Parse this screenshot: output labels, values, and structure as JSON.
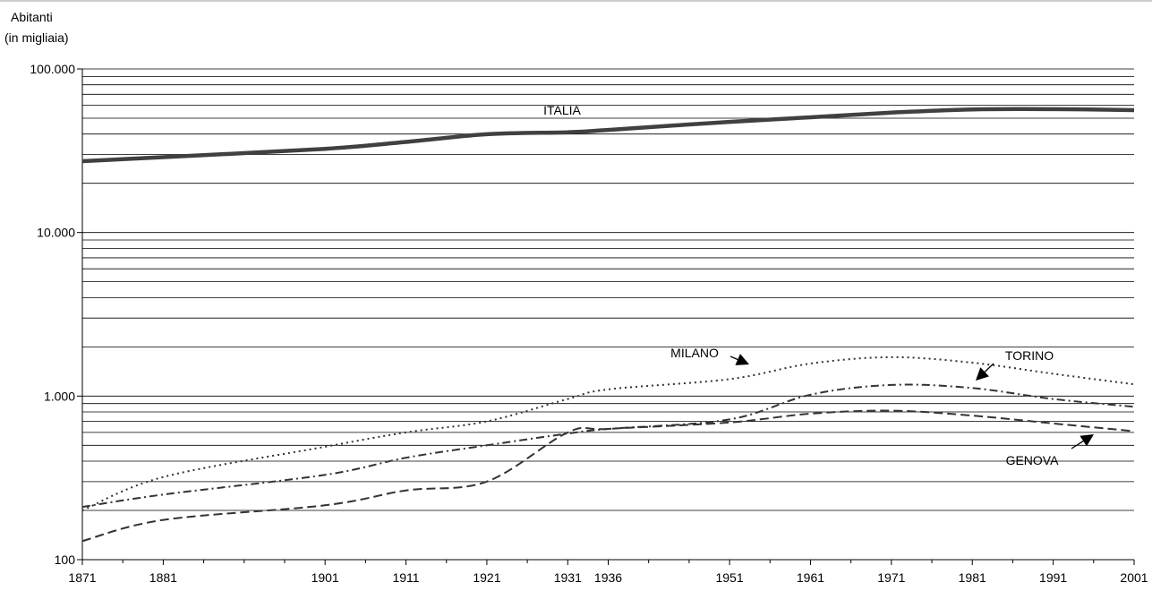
{
  "chart_data": {
    "type": "line",
    "y_axis_title_lines": [
      "Abitanti",
      "(in migliaia)"
    ],
    "y_scale": "log",
    "ylim": [
      100,
      100000
    ],
    "y_major_ticks": [
      {
        "value": 100,
        "label": "100"
      },
      {
        "value": 1000,
        "label": "1.000"
      },
      {
        "value": 10000,
        "label": "10.000"
      },
      {
        "value": 100000,
        "label": "100.000"
      }
    ],
    "xlim": [
      1871,
      2001
    ],
    "x_ticks": [
      {
        "value": 1871,
        "label": "1871"
      },
      {
        "value": 1881,
        "label": "1881"
      },
      {
        "value": 1901,
        "label": "1901"
      },
      {
        "value": 1911,
        "label": "1911"
      },
      {
        "value": 1921,
        "label": "1921"
      },
      {
        "value": 1931,
        "label": "1931"
      },
      {
        "value": 1936,
        "label": "1936"
      },
      {
        "value": 1951,
        "label": "1951"
      },
      {
        "value": 1961,
        "label": "1961"
      },
      {
        "value": 1971,
        "label": "1971"
      },
      {
        "value": 1981,
        "label": "1981"
      },
      {
        "value": 1991,
        "label": "1991"
      },
      {
        "value": 2001,
        "label": "2001"
      }
    ],
    "x_minor_ticks": [
      1876,
      1886,
      1891,
      1896,
      1906,
      1916,
      1926,
      1941,
      1946,
      1956,
      1966,
      1976,
      1986,
      1996
    ],
    "grid": "horizontal",
    "series": [
      {
        "name": "ITALIA",
        "style": "solid-thick",
        "color": "#404040",
        "points": [
          [
            1871,
            27300
          ],
          [
            1881,
            28900
          ],
          [
            1901,
            32500
          ],
          [
            1911,
            35800
          ],
          [
            1921,
            39900
          ],
          [
            1931,
            41000
          ],
          [
            1936,
            42400
          ],
          [
            1951,
            47500
          ],
          [
            1961,
            50600
          ],
          [
            1971,
            54100
          ],
          [
            1981,
            56600
          ],
          [
            1991,
            56800
          ],
          [
            2001,
            56000
          ]
        ]
      },
      {
        "name": "MILANO",
        "style": "dotted",
        "color": "#333333",
        "points": [
          [
            1871,
            200
          ],
          [
            1881,
            320
          ],
          [
            1901,
            490
          ],
          [
            1911,
            600
          ],
          [
            1921,
            700
          ],
          [
            1931,
            960
          ],
          [
            1936,
            1100
          ],
          [
            1951,
            1270
          ],
          [
            1961,
            1580
          ],
          [
            1971,
            1730
          ],
          [
            1981,
            1600
          ],
          [
            1991,
            1370
          ],
          [
            2001,
            1180
          ]
        ]
      },
      {
        "name": "TORINO",
        "style": "dash-dot",
        "color": "#333333",
        "points": [
          [
            1871,
            210
          ],
          [
            1881,
            250
          ],
          [
            1901,
            330
          ],
          [
            1911,
            420
          ],
          [
            1921,
            500
          ],
          [
            1931,
            590
          ],
          [
            1936,
            630
          ],
          [
            1951,
            720
          ],
          [
            1961,
            1020
          ],
          [
            1971,
            1170
          ],
          [
            1981,
            1120
          ],
          [
            1991,
            960
          ],
          [
            2001,
            860
          ]
        ]
      },
      {
        "name": "GENOVA",
        "style": "dashed",
        "color": "#333333",
        "points": [
          [
            1871,
            130
          ],
          [
            1881,
            175
          ],
          [
            1901,
            215
          ],
          [
            1911,
            265
          ],
          [
            1921,
            300
          ],
          [
            1931,
            600
          ],
          [
            1936,
            630
          ],
          [
            1951,
            690
          ],
          [
            1961,
            780
          ],
          [
            1971,
            815
          ],
          [
            1981,
            760
          ],
          [
            1991,
            680
          ],
          [
            2001,
            610
          ]
        ]
      }
    ],
    "series_labels": [
      {
        "series": "ITALIA",
        "text": "ITALIA",
        "arrow": false
      },
      {
        "series": "MILANO",
        "text": "MILANO",
        "arrow": true
      },
      {
        "series": "TORINO",
        "text": "TORINO",
        "arrow": true
      },
      {
        "series": "GENOVA",
        "text": "GENOVA",
        "arrow": true
      }
    ]
  }
}
